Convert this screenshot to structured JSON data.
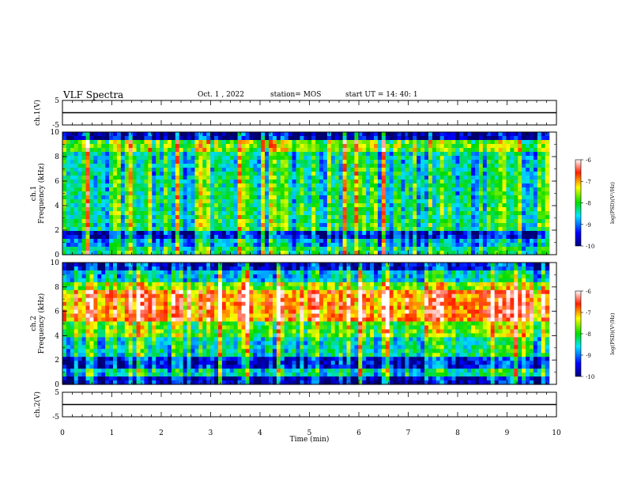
{
  "header": {
    "title": "VLF Spectra",
    "date": "Oct. 1 , 2022",
    "station": "station= MOS",
    "start": "start UT = 14: 40: 1"
  },
  "chart_data": [
    {
      "type": "line",
      "panel": "ch1-voltage",
      "ylabel": "ch.1(V)",
      "ylim": [
        -5,
        5
      ],
      "y_ticks": [
        "5",
        "-5"
      ],
      "x": [
        0,
        10
      ],
      "values": [
        0,
        0
      ]
    },
    {
      "type": "heatmap",
      "panel": "ch1-spectrogram",
      "ylabel": "ch.1\nFrequency (kHz)",
      "ylim": [
        0,
        10
      ],
      "y_ticks": [
        "0",
        "2",
        "4",
        "6",
        "8",
        "10"
      ],
      "xlim": [
        0,
        9.85
      ],
      "colorbar": {
        "label": "log(PSD)(V²/Hz)",
        "range": [
          -10,
          -6
        ],
        "ticks": [
          "-6",
          "-7",
          "-8",
          "-9",
          "-10"
        ]
      }
    },
    {
      "type": "heatmap",
      "panel": "ch2-spectrogram",
      "ylabel": "ch.2\nFrequency (kHz)",
      "ylim": [
        0,
        10
      ],
      "y_ticks": [
        "0",
        "2",
        "4",
        "6",
        "8",
        "10"
      ],
      "xlim": [
        0,
        9.85
      ],
      "colorbar": {
        "label": "log(PSD)(V²/Hz)",
        "range": [
          -10,
          -6
        ],
        "ticks": [
          "-6",
          "-7",
          "-8",
          "-9",
          "-10"
        ]
      }
    },
    {
      "type": "line",
      "panel": "ch2-voltage",
      "ylabel": "ch.2(V)",
      "ylim": [
        -5,
        5
      ],
      "y_ticks": [
        "5",
        "-5"
      ],
      "x": [
        0,
        10
      ],
      "values": [
        0,
        0
      ]
    }
  ],
  "x_axis": {
    "label": "Time (min)",
    "ticks": [
      "0",
      "1",
      "2",
      "3",
      "4",
      "5",
      "6",
      "7",
      "8",
      "9",
      "10"
    ]
  }
}
